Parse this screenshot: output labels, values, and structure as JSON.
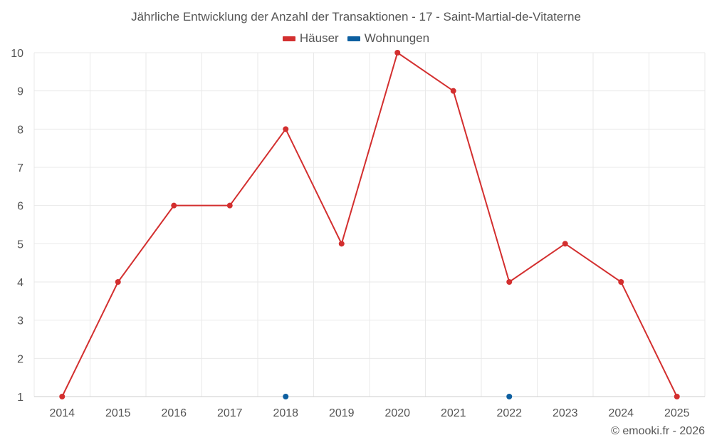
{
  "chart_data": {
    "type": "line",
    "title": "Jährliche Entwicklung der Anzahl der Transaktionen - 17 - Saint-Martial-de-Vitaterne",
    "categories": [
      "2014",
      "2015",
      "2016",
      "2017",
      "2018",
      "2019",
      "2020",
      "2021",
      "2022",
      "2023",
      "2024",
      "2025"
    ],
    "series": [
      {
        "name": "Häuser",
        "color": "#d32f2f",
        "values": [
          1,
          4,
          6,
          6,
          8,
          5,
          10,
          9,
          4,
          5,
          4,
          1
        ]
      },
      {
        "name": "Wohnungen",
        "color": "#0d5fa0",
        "values": [
          null,
          null,
          null,
          null,
          1,
          null,
          null,
          null,
          1,
          null,
          null,
          null
        ]
      }
    ],
    "yticks": [
      1,
      2,
      3,
      4,
      5,
      6,
      7,
      8,
      9,
      10
    ],
    "ylim": [
      1,
      10
    ],
    "grid": true,
    "legend_position": "top-center"
  },
  "credit": "© emooki.fr - 2026"
}
